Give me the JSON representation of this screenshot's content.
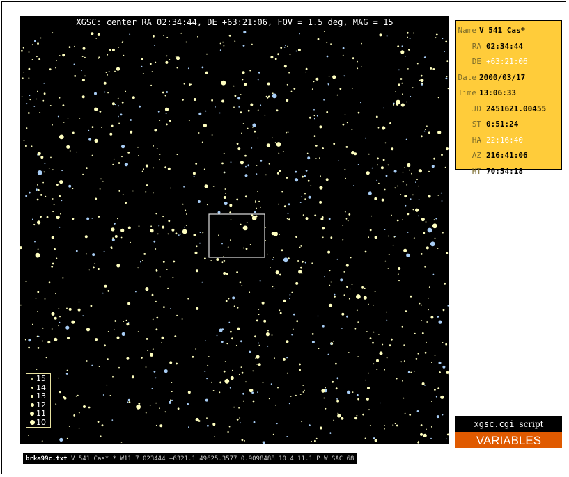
{
  "field": {
    "title": "XGSC: center RA 02:34:44, DE +63:21:06, FOV = 1.5 deg, MAG = 15",
    "colors": {
      "background": "#000000",
      "yellow_star": "#ffffc0",
      "blue_star": "#a8cdf5",
      "box": "#e0e0e0"
    }
  },
  "legend": {
    "items": [
      {
        "label": "15"
      },
      {
        "label": "14"
      },
      {
        "label": "13"
      },
      {
        "label": "12"
      },
      {
        "label": "11"
      },
      {
        "label": "10"
      }
    ]
  },
  "info": {
    "name_label": "Name",
    "name_value": "V 541 Cas*",
    "ra_label": "RA",
    "ra_value": "02:34:44",
    "de_label": "DE",
    "de_value": "+63:21:06",
    "date_label": "Date",
    "date_value": "2000/03/17",
    "time_label": "Time",
    "time_value": "13:06:33",
    "jd_label": "JD",
    "jd_value": "2451621.00455",
    "st_label": "ST",
    "st_value": "0:51:24",
    "ha_label": "HA",
    "ha_value": "22:16:40",
    "az_label": "AZ",
    "az_value": "216:41:06",
    "ht_label": "HT",
    "ht_value": "70:54:18",
    "panel_color": "#ffcc3a"
  },
  "script": {
    "name": "xgsc.cgi",
    "suffix": "script"
  },
  "variables_button": {
    "label": "VARIABLES",
    "color": "#e05a00"
  },
  "status": {
    "file": "brka99c.txt",
    "rest": "V 541 Cas* * W11 7 023444 +6321.1 49625.3577 0.9098488 10.4 11.1 P W SAC 68"
  }
}
